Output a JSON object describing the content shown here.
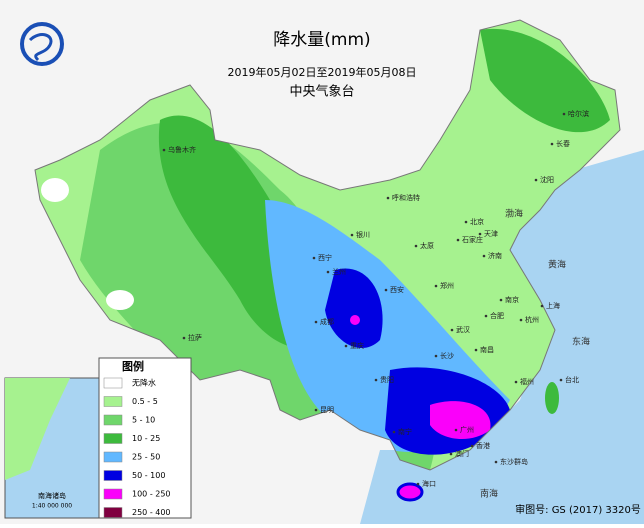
{
  "header": {
    "title": "降水量(mm)",
    "period": "2019年05月02日至2019年05月08日",
    "agency": "中央气象台"
  },
  "legend": {
    "title": "图例",
    "items": [
      {
        "label": "无降水",
        "color": "#ffffff"
      },
      {
        "label": "0.5 - 5",
        "color": "#a6f28f"
      },
      {
        "label": "5 - 10",
        "color": "#6fd66b"
      },
      {
        "label": "10 - 25",
        "color": "#3dba3d"
      },
      {
        "label": "25 - 50",
        "color": "#61b8ff"
      },
      {
        "label": "50 - 100",
        "color": "#0000e1"
      },
      {
        "label": "100 - 250",
        "color": "#fa00fa"
      },
      {
        "label": "250 - 400",
        "color": "#800040"
      }
    ]
  },
  "inset": {
    "label": "南海诸岛",
    "scale": "1:40 000 000"
  },
  "map_labels": [
    "乌鲁木齐",
    "拉萨",
    "西宁",
    "兰州",
    "银川",
    "呼和浩特",
    "北京",
    "天津",
    "石家庄",
    "太原",
    "济南",
    "郑州",
    "西安",
    "成都",
    "重庆",
    "武汉",
    "长沙",
    "南昌",
    "杭州",
    "上海",
    "南京",
    "合肥",
    "福州",
    "台北",
    "广州",
    "南宁",
    "海口",
    "贵阳",
    "昆明",
    "哈尔滨",
    "长春",
    "沈阳",
    "香港",
    "澳门",
    "东沙群岛"
  ],
  "sea_labels": [
    "南海",
    "东海",
    "黄海",
    "渤海"
  ],
  "approval": "审图号: GS (2017) 3320号"
}
